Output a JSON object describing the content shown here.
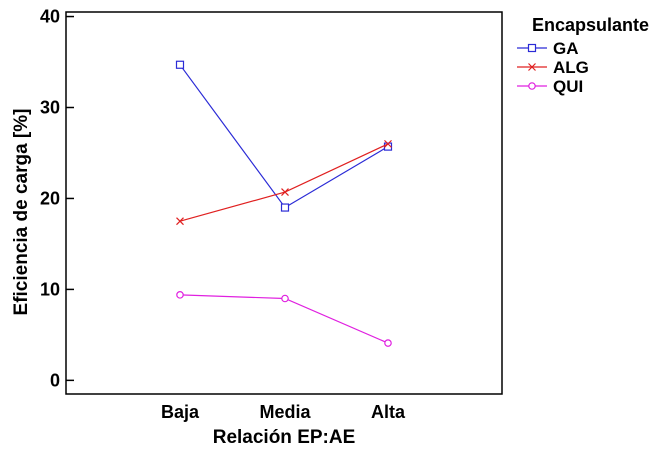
{
  "chart_data": {
    "type": "line",
    "title": "",
    "xlabel": "Relación EP:AE",
    "ylabel": "Eficiencia de carga [%]",
    "categories": [
      "Baja",
      "Media",
      "Alta"
    ],
    "ylim": [
      -1.5,
      40.5
    ],
    "yticks": [
      0,
      10,
      20,
      30,
      40
    ],
    "grid": false,
    "legend": {
      "title": "Encapsulante",
      "position": "top-right-outside"
    },
    "series": [
      {
        "name": "GA",
        "color": "#2b2bd6",
        "marker": "square",
        "values": [
          34.7,
          19.0,
          25.7
        ]
      },
      {
        "name": "ALG",
        "color": "#e02020",
        "marker": "x",
        "values": [
          17.5,
          20.7,
          26.0
        ]
      },
      {
        "name": "QUI",
        "color": "#e020e0",
        "marker": "circle",
        "values": [
          9.4,
          9.0,
          4.1
        ]
      }
    ]
  }
}
